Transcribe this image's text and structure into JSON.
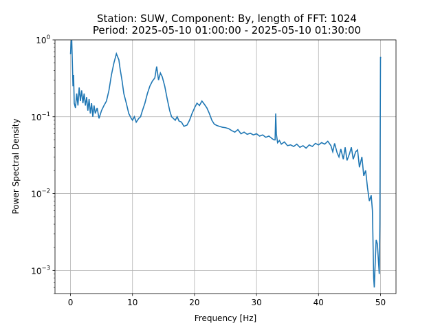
{
  "chart_data": {
    "type": "line",
    "title_line1": "Station: SUW, Component: By, length of FFT: 1024",
    "title_line2": "Period: 2025-05-10 01:00:00 - 2025-05-10 01:30:00",
    "xlabel": "Frequency [Hz]",
    "ylabel": "Power Spectral Density",
    "xlim": [
      -2.5,
      52.5
    ],
    "ylim": [
      0.0005,
      1.0
    ],
    "yscale": "log",
    "grid": true,
    "line_color": "#1f77b4",
    "x_ticks": [
      {
        "value": 0,
        "label": "0"
      },
      {
        "value": 10,
        "label": "10"
      },
      {
        "value": 20,
        "label": "20"
      },
      {
        "value": 30,
        "label": "30"
      },
      {
        "value": 40,
        "label": "40"
      },
      {
        "value": 50,
        "label": "50"
      }
    ],
    "y_ticks": [
      {
        "value": 0.001,
        "base": "10",
        "exp": "−3"
      },
      {
        "value": 0.01,
        "base": "10",
        "exp": "−2"
      },
      {
        "value": 0.1,
        "base": "10",
        "exp": "−1"
      },
      {
        "value": 1,
        "base": "10",
        "exp": "0"
      }
    ],
    "series": [
      {
        "x": [
          0,
          0.1,
          0.2,
          0.3,
          0.4,
          0.5,
          0.6,
          0.8,
          1.0,
          1.2,
          1.4,
          1.6,
          1.8,
          2.0,
          2.2,
          2.4,
          2.6,
          2.8,
          3.0,
          3.2,
          3.4,
          3.6,
          3.8,
          4.0,
          4.3,
          4.6,
          5.0,
          5.4,
          5.8,
          6.2,
          6.6,
          7.0,
          7.4,
          7.8,
          8.0,
          8.3,
          8.6,
          9.0,
          9.4,
          9.8,
          10.0,
          10.3,
          10.6,
          11.0,
          11.3,
          11.6,
          12.0,
          12.4,
          12.8,
          13.2,
          13.6,
          13.9,
          14.2,
          14.5,
          14.8,
          15.2,
          15.6,
          16.0,
          16.3,
          16.6,
          16.9,
          17.2,
          17.5,
          17.9,
          18.3,
          18.8,
          19.2,
          19.6,
          20.0,
          20.4,
          20.8,
          21.2,
          21.6,
          22.0,
          22.4,
          22.8,
          23.2,
          23.6,
          24.0,
          24.5,
          25.0,
          25.5,
          26.0,
          26.5,
          27.0,
          27.5,
          28.0,
          28.5,
          29.0,
          29.5,
          30.0,
          30.5,
          31.0,
          31.5,
          32.0,
          32.5,
          32.8,
          33.0,
          33.1,
          33.2,
          33.4,
          33.7,
          34.0,
          34.5,
          35.0,
          35.5,
          36.0,
          36.5,
          37.0,
          37.5,
          38.0,
          38.5,
          39.0,
          39.5,
          40.0,
          40.5,
          41.0,
          41.5,
          42.0,
          42.3,
          42.6,
          43.0,
          43.3,
          43.6,
          44.0,
          44.3,
          44.6,
          45.0,
          45.3,
          45.6,
          46.0,
          46.3,
          46.6,
          47.0,
          47.3,
          47.6,
          47.9,
          48.2,
          48.5,
          48.7,
          48.9,
          49.0,
          49.1,
          49.3,
          49.5,
          49.7,
          49.8,
          49.9,
          50.0,
          50.05
        ],
        "y": [
          0.65,
          0.95,
          1.0,
          0.5,
          0.25,
          0.35,
          0.15,
          0.13,
          0.2,
          0.14,
          0.24,
          0.16,
          0.22,
          0.15,
          0.2,
          0.14,
          0.18,
          0.12,
          0.17,
          0.11,
          0.15,
          0.1,
          0.14,
          0.11,
          0.13,
          0.095,
          0.12,
          0.14,
          0.16,
          0.22,
          0.35,
          0.5,
          0.66,
          0.55,
          0.42,
          0.3,
          0.2,
          0.15,
          0.11,
          0.095,
          0.09,
          0.1,
          0.085,
          0.095,
          0.1,
          0.12,
          0.15,
          0.2,
          0.25,
          0.29,
          0.32,
          0.45,
          0.3,
          0.37,
          0.33,
          0.25,
          0.17,
          0.12,
          0.1,
          0.095,
          0.09,
          0.1,
          0.088,
          0.085,
          0.075,
          0.078,
          0.09,
          0.11,
          0.13,
          0.15,
          0.14,
          0.16,
          0.145,
          0.13,
          0.11,
          0.09,
          0.08,
          0.077,
          0.075,
          0.073,
          0.072,
          0.07,
          0.066,
          0.063,
          0.068,
          0.06,
          0.063,
          0.059,
          0.061,
          0.058,
          0.06,
          0.056,
          0.058,
          0.054,
          0.056,
          0.052,
          0.05,
          0.05,
          0.11,
          0.06,
          0.046,
          0.049,
          0.044,
          0.047,
          0.042,
          0.043,
          0.041,
          0.044,
          0.04,
          0.042,
          0.039,
          0.043,
          0.041,
          0.045,
          0.043,
          0.046,
          0.044,
          0.048,
          0.042,
          0.035,
          0.045,
          0.034,
          0.03,
          0.038,
          0.028,
          0.04,
          0.027,
          0.033,
          0.04,
          0.028,
          0.035,
          0.037,
          0.022,
          0.03,
          0.017,
          0.02,
          0.012,
          0.008,
          0.0095,
          0.006,
          0.0008,
          0.0006,
          0.001,
          0.0025,
          0.0022,
          0.0012,
          0.0009,
          0.004,
          0.6,
          0.58
        ]
      }
    ]
  }
}
